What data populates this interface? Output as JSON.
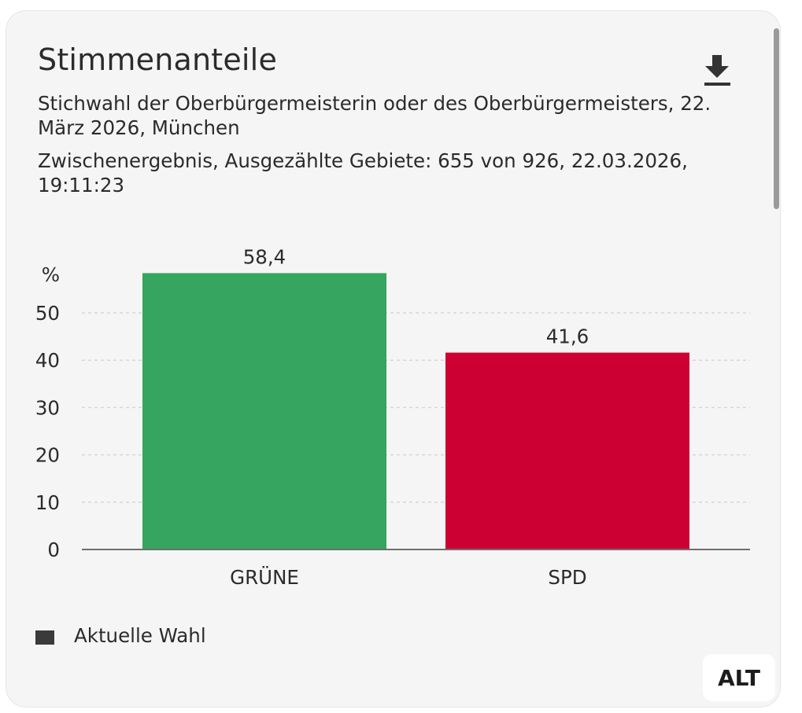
{
  "card": {
    "title": "Stimmenanteile",
    "subtitle": "Stichwahl der Oberbürgermeisterin oder des Oberbürgermeisters, 22. März 2026, München",
    "status": "Zwischenergebnis, Ausgezählte Gebiete: 655 von 926, 22.03.2026, 19:11:23",
    "download_icon": "download-icon",
    "alt_badge": "ALT"
  },
  "chart_data": {
    "type": "bar",
    "categories": [
      "GRÜNE",
      "SPD"
    ],
    "series": [
      {
        "name": "Aktuelle Wahl",
        "values": [
          58.4,
          41.6
        ],
        "labels": [
          "58,4",
          "41,6"
        ],
        "colors": [
          "#35a55f",
          "#cc0033"
        ]
      }
    ],
    "ylabel": "%",
    "ylim": [
      0,
      58.4
    ],
    "yticks": [
      0,
      10,
      20,
      30,
      40,
      50
    ],
    "grid": true,
    "legend": [
      {
        "label": "Aktuelle Wahl",
        "color": "#3a3a3a"
      }
    ]
  },
  "colors": {
    "axis": "#6f6f6f",
    "grid": "#d6d6d6",
    "text": "#2b2b2b"
  }
}
